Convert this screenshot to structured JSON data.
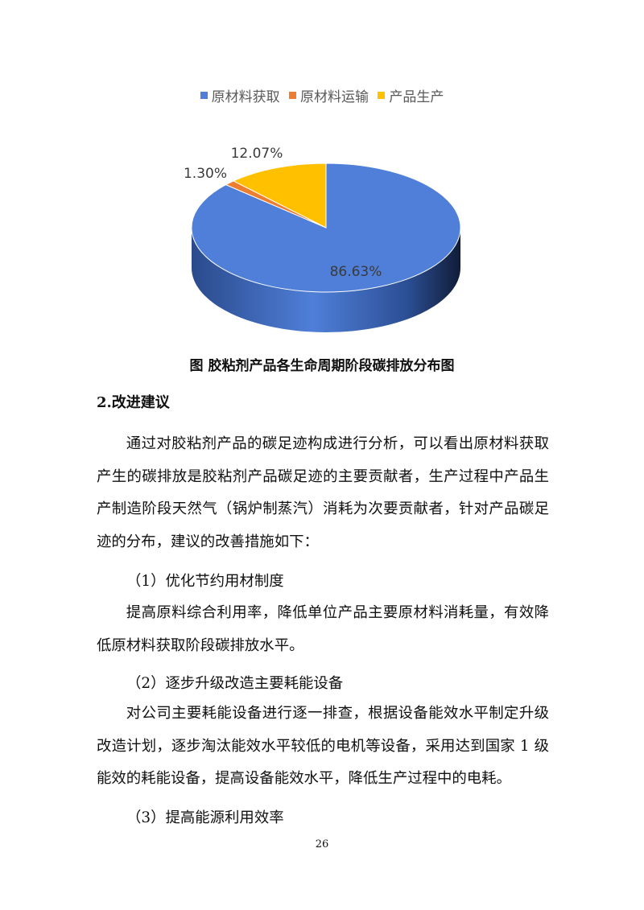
{
  "chart_data": {
    "type": "pie",
    "style": "3d",
    "legend_position": "top",
    "categories": [
      "原材料获取",
      "原材料运输",
      "产品生产"
    ],
    "values": [
      86.63,
      1.3,
      12.07
    ],
    "labels": [
      "86.63%",
      "1.30%",
      "12.07%"
    ],
    "colors": [
      "#4f7fd8",
      "#ed7d31",
      "#ffc000"
    ]
  },
  "caption": "图  胶粘剂产品各生命周期阶段碳排放分布图",
  "section_heading": "2.改进建议",
  "paragraph1": "通过对胶粘剂产品的碳足迹构成进行分析，可以看出原材料获取产生的碳排放是胶粘剂产品碳足迹的主要贡献者，生产过程中产品生产制造阶段天然气（锅炉制蒸汽）消耗为次要贡献者，针对产品碳足迹的分布，建议的改善措施如下：",
  "item1": {
    "title": "（1）优化节约用材制度",
    "text": "提高原料综合利用率，降低单位产品主要原材料消耗量，有效降低原材料获取阶段碳排放水平。"
  },
  "item2": {
    "title": "（2）逐步升级改造主要耗能设备",
    "text": "对公司主要耗能设备进行逐一排查，根据设备能效水平制定升级改造计划，逐步淘汰能效水平较低的电机等设备，采用达到国家 1 级能效的耗能设备，提高设备能效水平，降低生产过程中的电耗。"
  },
  "item3": {
    "title": "（3）提高能源利用效率"
  },
  "page_number": "26"
}
